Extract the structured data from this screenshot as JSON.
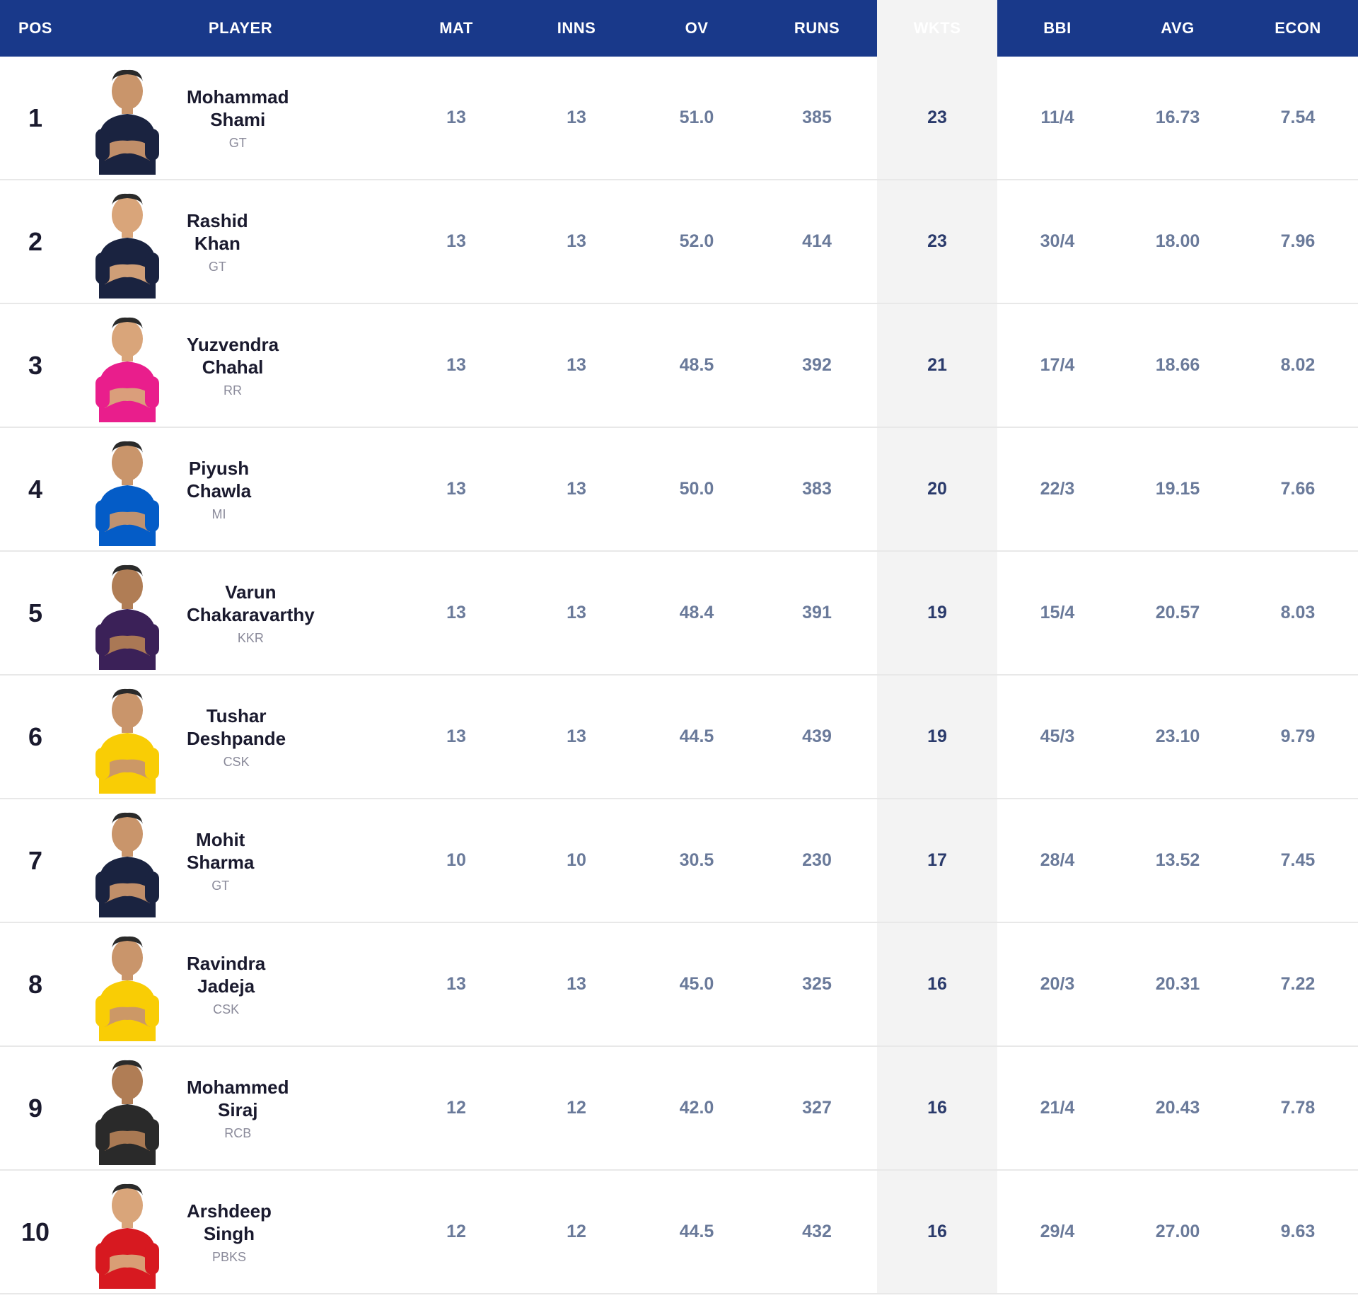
{
  "table": {
    "headers": {
      "pos": "POS",
      "player": "PLAYER",
      "mat": "MAT",
      "inns": "INNS",
      "ov": "OV",
      "runs": "RUNS",
      "wkts": "WKTS",
      "bbi": "BBI",
      "avg": "AVG",
      "econ": "ECON"
    },
    "highlight_column": "wkts",
    "colors": {
      "header_bg": "#19398a",
      "header_text": "#ffffff",
      "row_border": "#e8e8e8",
      "highlight_bg": "#f3f3f3",
      "pos_text": "#1a1a2e",
      "name_text": "#1a1a2e",
      "team_text": "#8a8a9a",
      "stat_text": "#6a7a9a",
      "stat_strong_text": "#2a3a6b"
    },
    "rows": [
      {
        "pos": "1",
        "name_first": "Mohammad",
        "name_last": "Shami",
        "team": "GT",
        "jersey": "#1a2340",
        "skin": "#c9956b",
        "mat": "13",
        "inns": "13",
        "ov": "51.0",
        "runs": "385",
        "wkts": "23",
        "bbi": "11/4",
        "avg": "16.73",
        "econ": "7.54"
      },
      {
        "pos": "2",
        "name_first": "Rashid",
        "name_last": "Khan",
        "team": "GT",
        "jersey": "#1a2340",
        "skin": "#d9a57a",
        "mat": "13",
        "inns": "13",
        "ov": "52.0",
        "runs": "414",
        "wkts": "23",
        "bbi": "30/4",
        "avg": "18.00",
        "econ": "7.96"
      },
      {
        "pos": "3",
        "name_first": "Yuzvendra",
        "name_last": "Chahal",
        "team": "RR",
        "jersey": "#e91e8c",
        "skin": "#d9a57a",
        "mat": "13",
        "inns": "13",
        "ov": "48.5",
        "runs": "392",
        "wkts": "21",
        "bbi": "17/4",
        "avg": "18.66",
        "econ": "8.02"
      },
      {
        "pos": "4",
        "name_first": "Piyush",
        "name_last": "Chawla",
        "team": "MI",
        "jersey": "#045cc7",
        "skin": "#c9956b",
        "mat": "13",
        "inns": "13",
        "ov": "50.0",
        "runs": "383",
        "wkts": "20",
        "bbi": "22/3",
        "avg": "19.15",
        "econ": "7.66"
      },
      {
        "pos": "5",
        "name_first": "Varun",
        "name_last": "Chakaravarthy",
        "team": "KKR",
        "jersey": "#3b2158",
        "skin": "#b07d55",
        "mat": "13",
        "inns": "13",
        "ov": "48.4",
        "runs": "391",
        "wkts": "19",
        "bbi": "15/4",
        "avg": "20.57",
        "econ": "8.03"
      },
      {
        "pos": "6",
        "name_first": "Tushar",
        "name_last": "Deshpande",
        "team": "CSK",
        "jersey": "#f9cd05",
        "skin": "#c9956b",
        "mat": "13",
        "inns": "13",
        "ov": "44.5",
        "runs": "439",
        "wkts": "19",
        "bbi": "45/3",
        "avg": "23.10",
        "econ": "9.79"
      },
      {
        "pos": "7",
        "name_first": "Mohit",
        "name_last": "Sharma",
        "team": "GT",
        "jersey": "#1a2340",
        "skin": "#c9956b",
        "mat": "10",
        "inns": "10",
        "ov": "30.5",
        "runs": "230",
        "wkts": "17",
        "bbi": "28/4",
        "avg": "13.52",
        "econ": "7.45"
      },
      {
        "pos": "8",
        "name_first": "Ravindra",
        "name_last": "Jadeja",
        "team": "CSK",
        "jersey": "#f9cd05",
        "skin": "#c9956b",
        "mat": "13",
        "inns": "13",
        "ov": "45.0",
        "runs": "325",
        "wkts": "16",
        "bbi": "20/3",
        "avg": "20.31",
        "econ": "7.22"
      },
      {
        "pos": "9",
        "name_first": "Mohammed",
        "name_last": "Siraj",
        "team": "RCB",
        "jersey": "#2a2a2a",
        "skin": "#b07d55",
        "mat": "12",
        "inns": "12",
        "ov": "42.0",
        "runs": "327",
        "wkts": "16",
        "bbi": "21/4",
        "avg": "20.43",
        "econ": "7.78"
      },
      {
        "pos": "10",
        "name_first": "Arshdeep",
        "name_last": "Singh",
        "team": "PBKS",
        "jersey": "#d71920",
        "skin": "#d9a57a",
        "mat": "12",
        "inns": "12",
        "ov": "44.5",
        "runs": "432",
        "wkts": "16",
        "bbi": "29/4",
        "avg": "27.00",
        "econ": "9.63"
      }
    ]
  }
}
